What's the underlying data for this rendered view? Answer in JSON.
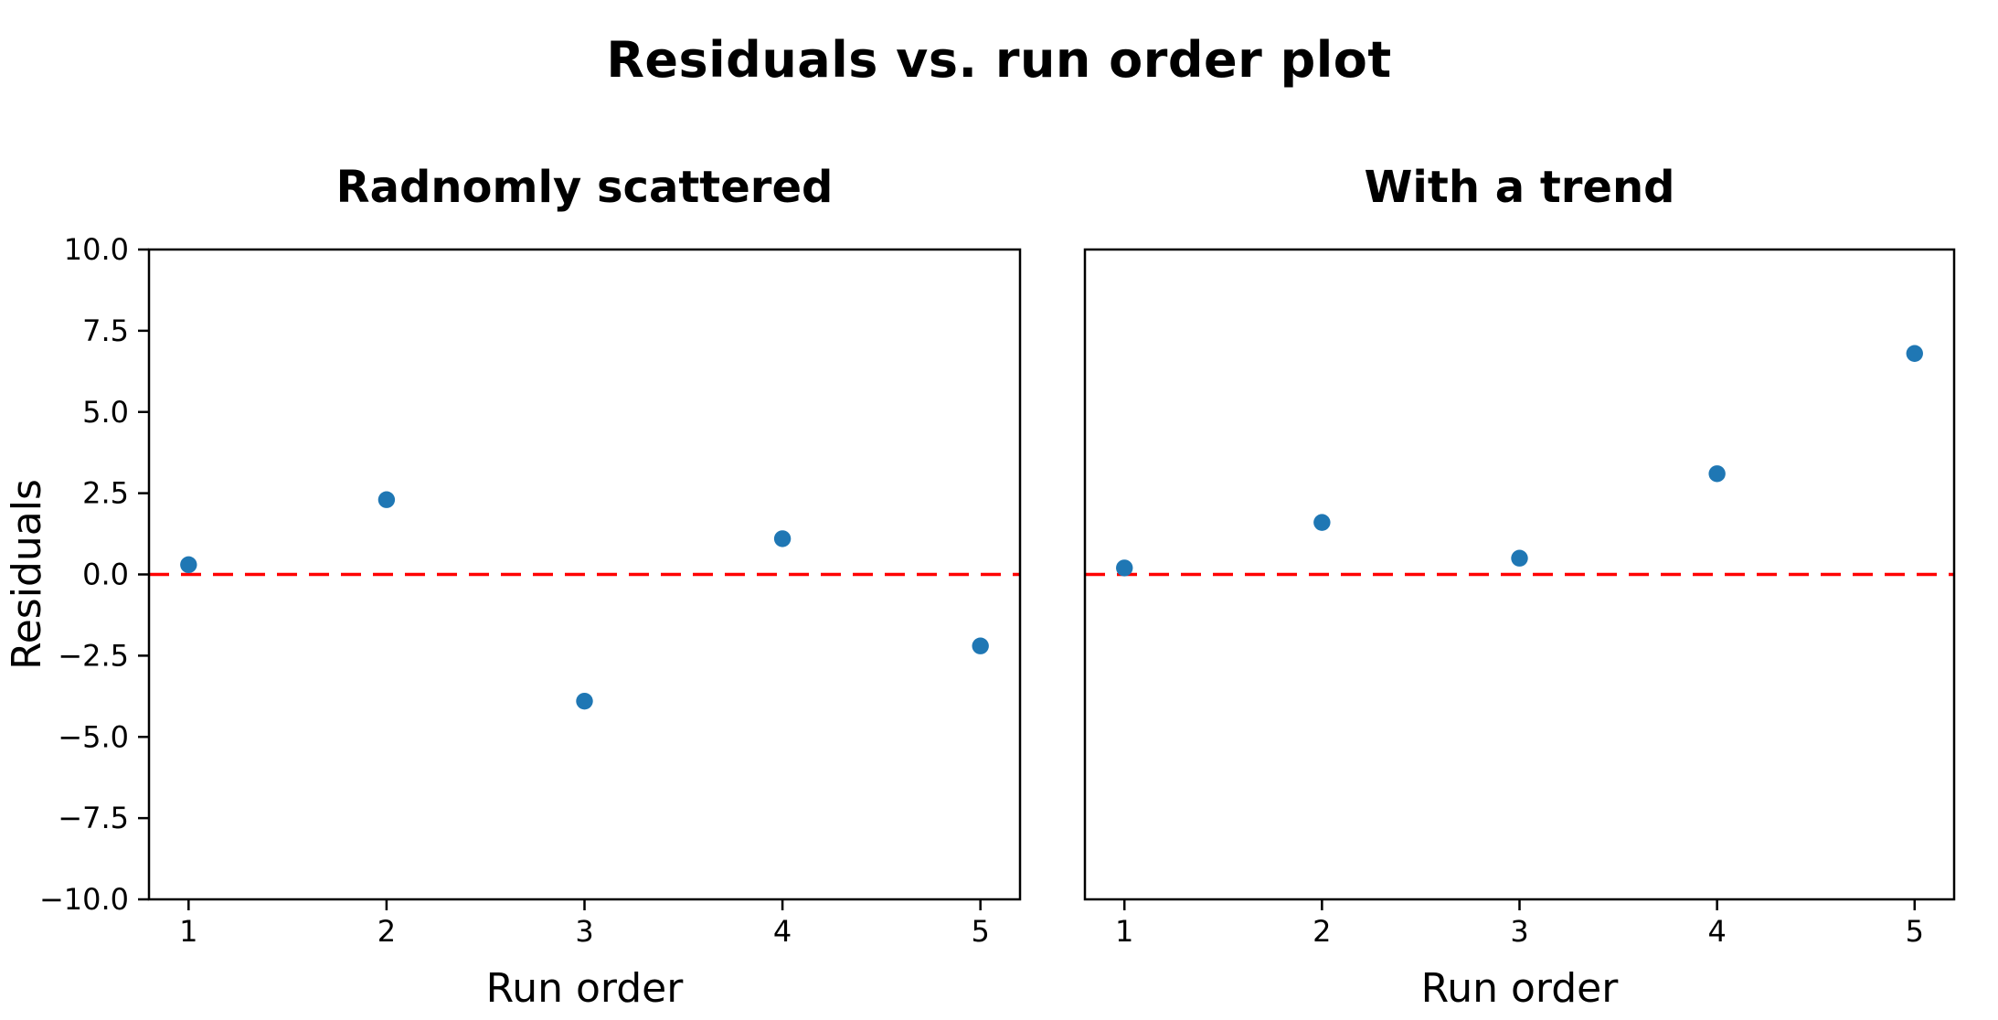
{
  "figure": {
    "title": "Residuals vs. run order plot"
  },
  "style": {
    "background_color": "#ffffff",
    "axis_color": "#000000",
    "text_color": "#000000",
    "marker_color": "#1f77b4",
    "zero_line_color": "#ff0000"
  },
  "chart_data": [
    {
      "type": "scatter",
      "title": "Radnomly scattered",
      "xlabel": "Run order",
      "ylabel": "Residuals",
      "x": [
        1,
        2,
        3,
        4,
        5
      ],
      "y": [
        0.3,
        2.3,
        -3.9,
        1.1,
        -2.2
      ],
      "xlim": [
        0.8,
        5.2
      ],
      "ylim": [
        -10,
        10
      ],
      "xticks": [
        1,
        2,
        3,
        4,
        5
      ],
      "xtick_labels": [
        "1",
        "2",
        "3",
        "4",
        "5"
      ],
      "yticks": [
        -10,
        -7.5,
        -5,
        -2.5,
        0,
        2.5,
        5,
        7.5,
        10
      ],
      "ytick_labels": [
        "−10.0",
        "−7.5",
        "−5.0",
        "−2.5",
        "0.0",
        "2.5",
        "5.0",
        "7.5",
        "10.0"
      ],
      "zero_line": {
        "y": 0,
        "style": "dashed",
        "color": "#ff0000"
      },
      "marker_color": "#1f77b4",
      "grid": false,
      "legend": null
    },
    {
      "type": "scatter",
      "title": "With a trend",
      "xlabel": "Run order",
      "ylabel": null,
      "x": [
        1,
        2,
        3,
        4,
        5
      ],
      "y": [
        0.2,
        1.6,
        0.5,
        3.1,
        6.8
      ],
      "xlim": [
        0.8,
        5.2
      ],
      "ylim": [
        -10,
        10
      ],
      "xticks": [
        1,
        2,
        3,
        4,
        5
      ],
      "xtick_labels": [
        "1",
        "2",
        "3",
        "4",
        "5"
      ],
      "yticks": [],
      "ytick_labels": null,
      "zero_line": {
        "y": 0,
        "style": "dashed",
        "color": "#ff0000"
      },
      "marker_color": "#1f77b4",
      "grid": false,
      "legend": null
    }
  ]
}
